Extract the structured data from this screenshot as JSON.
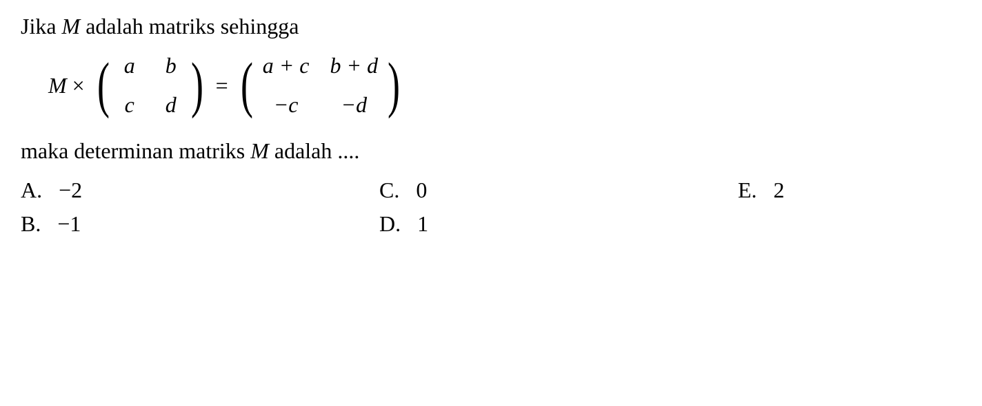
{
  "background_color": "#ffffff",
  "text_color": "#000000",
  "font_family": "Times New Roman, serif",
  "question": {
    "intro_prefix": "Jika ",
    "intro_var": "M",
    "intro_suffix": " adalah matriks sehingga",
    "followup_prefix": "maka determinan matriks ",
    "followup_var": "M",
    "followup_suffix": " adalah ....",
    "fontsize": 32
  },
  "equation": {
    "lhs_var": "M",
    "multiply_symbol": "×",
    "equals_symbol": "=",
    "matrix_left": {
      "rows": 2,
      "cols": 2,
      "cells": [
        "a",
        "b",
        "c",
        "d"
      ]
    },
    "matrix_right": {
      "rows": 2,
      "cols": 2,
      "cells": [
        "a + c",
        "b + d",
        "−c",
        "−d"
      ]
    },
    "paren_color": "#000000",
    "fontsize": 32
  },
  "options": {
    "layout": "3-column",
    "items": [
      {
        "letter": "A.",
        "value": "−2"
      },
      {
        "letter": "C.",
        "value": "0"
      },
      {
        "letter": "E.",
        "value": "2"
      },
      {
        "letter": "B.",
        "value": "−1"
      },
      {
        "letter": "D.",
        "value": "1"
      }
    ],
    "fontsize": 32
  }
}
